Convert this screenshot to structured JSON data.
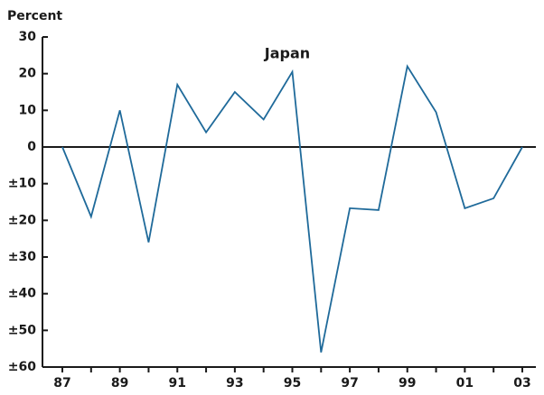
{
  "chart_data": {
    "type": "line",
    "title": "Japan",
    "y_label": "Percent",
    "categories": [
      "87",
      null,
      "89",
      null,
      "91",
      null,
      "93",
      null,
      "95",
      null,
      "97",
      null,
      "99",
      null,
      "01",
      null,
      "03"
    ],
    "series": [
      {
        "name": "Japan",
        "color": "#1f6a9a",
        "values": [
          0,
          -19,
          10,
          -26,
          17,
          4,
          15,
          7.5,
          20.5,
          -56,
          -16.7,
          -17.2,
          22,
          9.5,
          -16.7,
          -14,
          0
        ]
      }
    ],
    "ylim": [
      -60,
      30
    ],
    "yticks": [
      30,
      20,
      10,
      0,
      {
        "value": -10,
        "label": "±10"
      },
      {
        "value": -20,
        "label": "±20"
      },
      {
        "value": -30,
        "label": "±30"
      },
      {
        "value": -40,
        "label": "±40"
      },
      {
        "value": -50,
        "label": "±50"
      },
      {
        "value": -60,
        "label": "±60"
      }
    ]
  }
}
